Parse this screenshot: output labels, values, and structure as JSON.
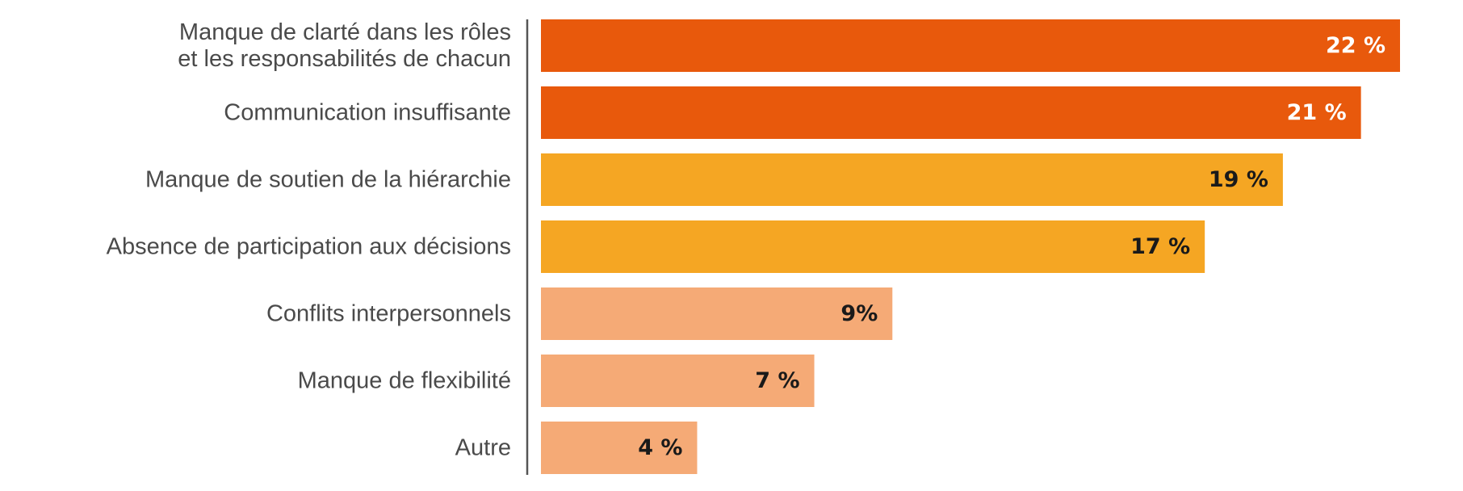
{
  "chart_data": {
    "type": "bar",
    "orientation": "horizontal",
    "title": "",
    "xlabel": "",
    "ylabel": "",
    "xlim": [
      0,
      22
    ],
    "grid": false,
    "categories": [
      [
        "Manque de clarté dans les rôles",
        "et les responsabilités de chacun"
      ],
      [
        "Communication insuffisante"
      ],
      [
        "Manque de soutien de la hiérarchie"
      ],
      [
        "Absence de participation aux décisions"
      ],
      [
        "Conflits interpersonnels"
      ],
      [
        "Manque de flexibilité"
      ],
      [
        "Autre"
      ]
    ],
    "values": [
      22,
      21,
      19,
      17,
      9,
      7,
      4
    ],
    "value_labels": [
      "22 %",
      "21 %",
      "19 %",
      "17 %",
      "9%",
      "7 %",
      "4 %"
    ],
    "bar_colors": [
      "#e8590c",
      "#e8590c",
      "#f5a623",
      "#f5a623",
      "#f5aa76",
      "#f5aa76",
      "#f5aa76"
    ],
    "value_label_colors": [
      "#ffffff",
      "#ffffff",
      "#1a1a1a",
      "#1a1a1a",
      "#1a1a1a",
      "#1a1a1a",
      "#1a1a1a"
    ],
    "axis_color": "#555555"
  }
}
